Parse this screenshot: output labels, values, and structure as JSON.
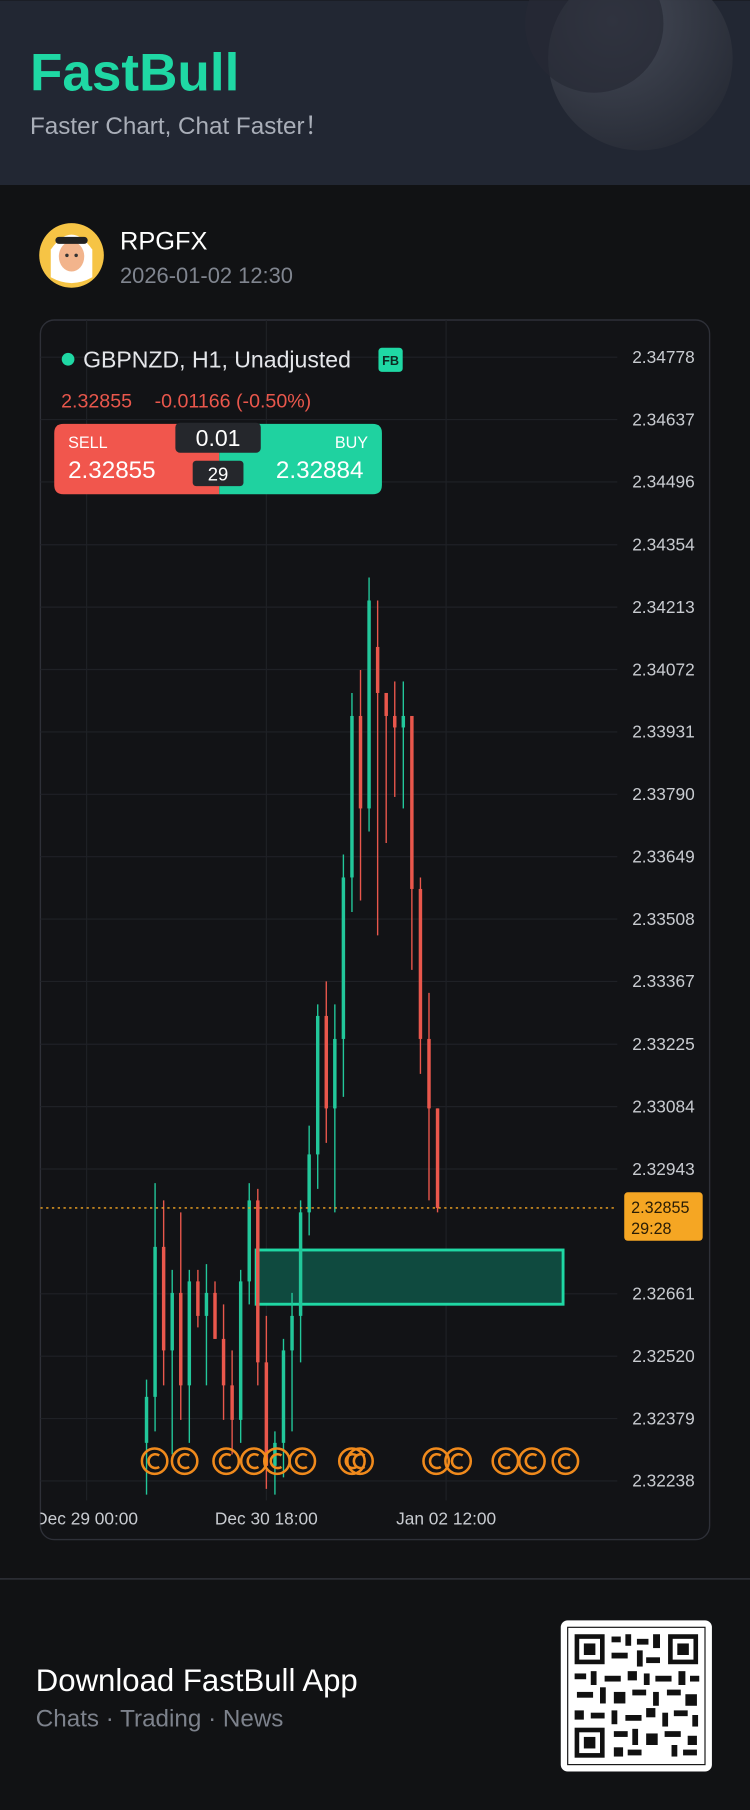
{
  "header": {
    "brand": "FastBull",
    "tagline": "Faster Chart, Chat Faster！"
  },
  "post": {
    "user": "RPGFX",
    "time": "2026-01-02 12:30"
  },
  "trade": {
    "sell_label": "SELL",
    "sell_price": 2.32855,
    "lot": 0.01,
    "spread": 29,
    "buy_label": "BUY",
    "buy_price": 2.32884
  },
  "chart_data": {
    "type": "candlestick",
    "symbol": "GBPNZD, H1, Unadjusted",
    "badge": "FB",
    "price": 2.32855,
    "change": "-0.01166 (-0.50%)",
    "x": [
      14,
      16,
      18,
      20,
      22,
      24,
      26,
      28,
      30,
      32,
      34,
      36,
      38,
      40,
      42,
      44,
      46,
      48,
      50,
      52,
      54,
      56,
      58,
      60,
      62,
      64,
      66,
      68,
      70,
      72,
      74,
      76,
      78,
      80,
      82
    ],
    "open": [
      2.32324,
      2.32428,
      2.32767,
      2.32533,
      2.32663,
      2.32454,
      2.32689,
      2.32611,
      2.32663,
      2.32559,
      2.32454,
      2.32376,
      2.32689,
      2.32872,
      2.32506,
      2.32272,
      2.32324,
      2.32533,
      2.32611,
      2.32845,
      2.32976,
      2.33289,
      2.3308,
      2.33237,
      2.33602,
      2.33967,
      2.33758,
      2.34123,
      2.34019,
      2.33967,
      2.33941,
      2.33967,
      2.33576,
      2.33237,
      2.3308
    ],
    "high": [
      2.32467,
      2.32911,
      2.32872,
      2.32715,
      2.32845,
      2.32715,
      2.32715,
      2.32728,
      2.32689,
      2.32637,
      2.32533,
      2.32715,
      2.32911,
      2.32898,
      2.32611,
      2.3235,
      2.32559,
      2.32663,
      2.32872,
      2.33041,
      2.33315,
      2.33367,
      2.33315,
      2.33654,
      2.34019,
      2.34071,
      2.3428,
      2.34228,
      2.34019,
      2.34045,
      2.34045,
      2.33967,
      2.33602,
      2.33341,
      2.3308
    ],
    "low": [
      2.32207,
      2.3235,
      2.32454,
      2.32298,
      2.32376,
      2.32324,
      2.32585,
      2.32454,
      2.32559,
      2.32376,
      2.32298,
      2.32324,
      2.32637,
      2.32454,
      2.3222,
      2.32207,
      2.32246,
      2.3235,
      2.32506,
      2.32793,
      2.32898,
      2.33002,
      2.32845,
      2.33106,
      2.33524,
      2.3355,
      2.33706,
      2.33471,
      2.3368,
      2.33784,
      2.33758,
      2.33393,
      2.33158,
      2.32872,
      2.32845
    ],
    "close": [
      2.32428,
      2.32767,
      2.32533,
      2.32663,
      2.32454,
      2.32689,
      2.32611,
      2.32663,
      2.32559,
      2.32454,
      2.32376,
      2.32689,
      2.32872,
      2.32506,
      2.32272,
      2.32324,
      2.32533,
      2.32611,
      2.32845,
      2.32976,
      2.33289,
      2.3308,
      2.33237,
      2.33602,
      2.33967,
      2.33758,
      2.34228,
      2.34019,
      2.33967,
      2.33941,
      2.33967,
      2.33576,
      2.33237,
      2.3308,
      2.32855
    ],
    "up_color": "#22c79a",
    "down_color": "#e9574c",
    "xlim": [
      -10.8,
      124
    ],
    "xticks": [
      {
        "value": 0,
        "label": "Dec 29 00:00"
      },
      {
        "value": 42,
        "label": "Dec 30 18:00"
      },
      {
        "value": 84,
        "label": "Jan 02 12:00"
      }
    ],
    "ylim": [
      2.32194,
      2.34862
    ],
    "yticks": [
      2.34778,
      2.34637,
      2.34496,
      2.34354,
      2.34213,
      2.34072,
      2.33931,
      {
        "value": 2.3379,
        "label": "2.33790"
      },
      2.33649,
      2.33508,
      2.33367,
      2.33225,
      2.33084,
      2.32943,
      2.32661,
      {
        "value": 2.3252,
        "label": "2.32520"
      },
      2.32379,
      2.32238
    ],
    "grid": true,
    "price_tag": {
      "price": 2.32855,
      "countdown": "29:28"
    }
  },
  "footer": {
    "title": "Download FastBull App",
    "subtitle": "Chats · Trading · News"
  }
}
